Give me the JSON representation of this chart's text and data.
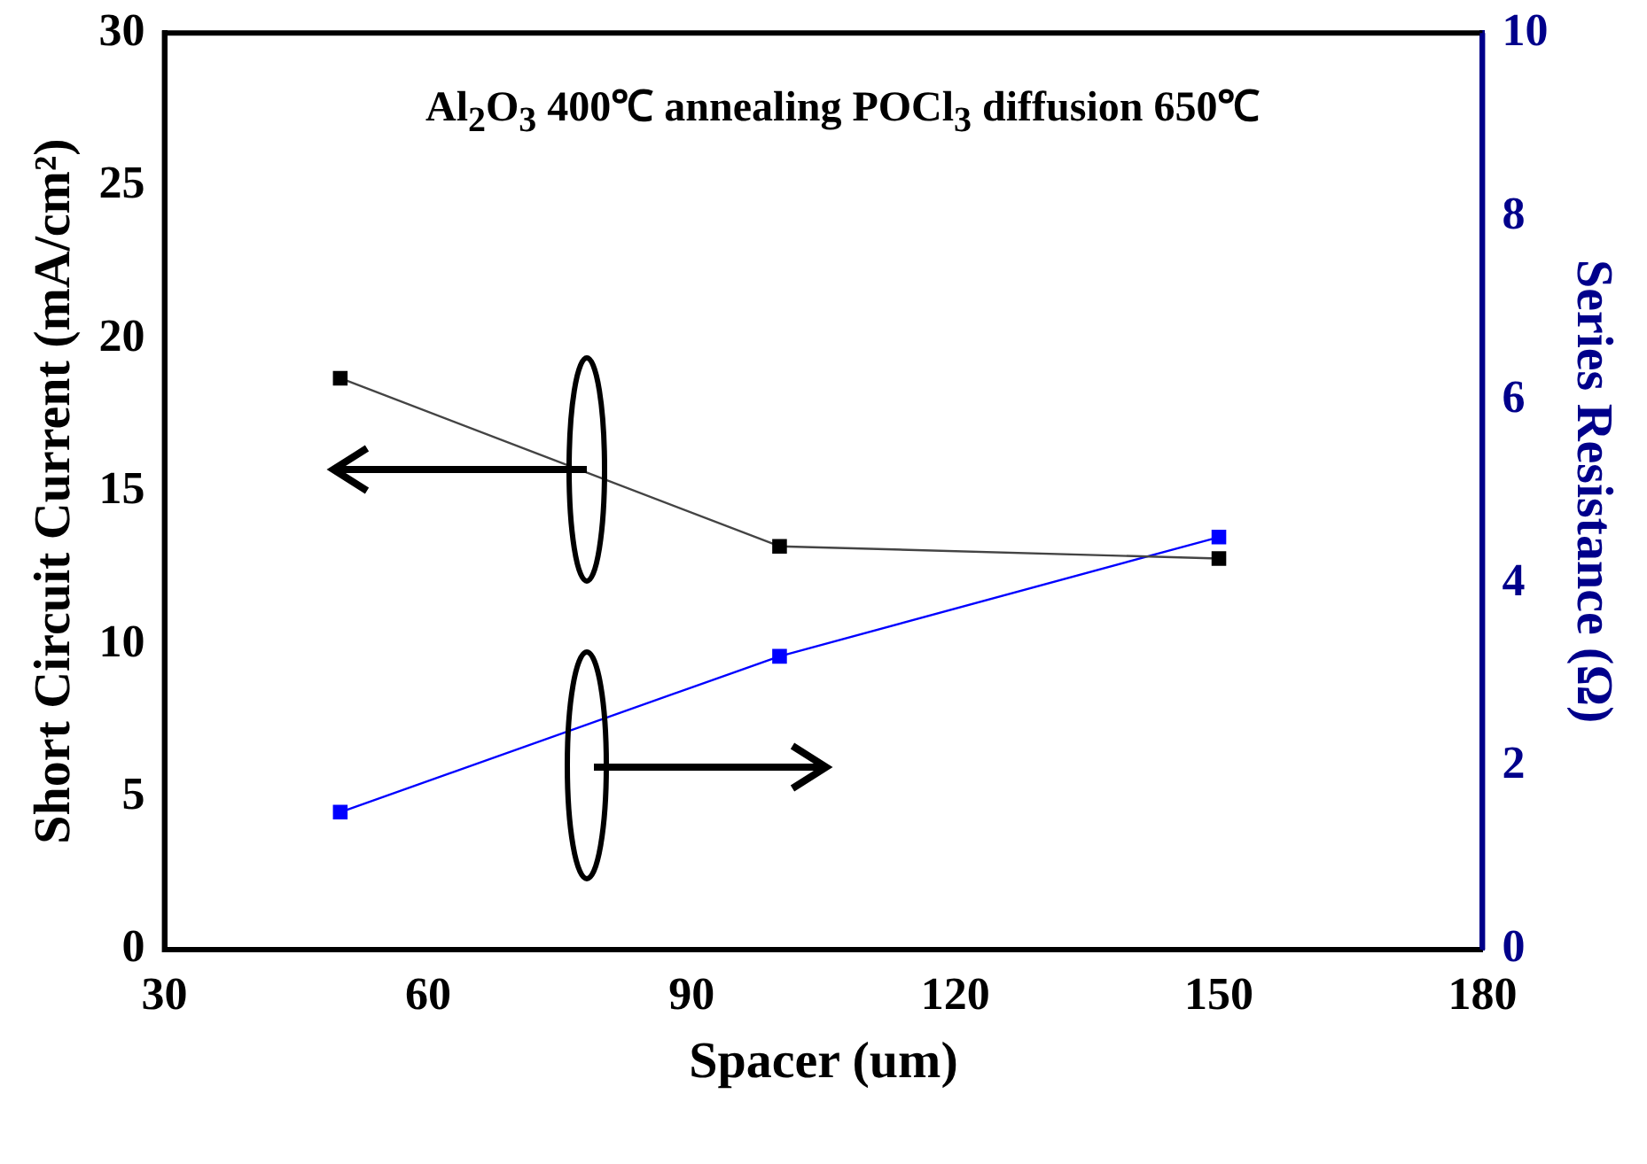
{
  "chart_data": {
    "type": "line",
    "xlabel": "Spacer (um)",
    "ylabel": "Short Circuit Current (mA/cm²)",
    "y2label": "Series Resistance (Ω)",
    "annotations": [
      "Al$_{2}$O$_{3}$ 400℃ annealing POCl$_{3}$ diffusion 650℃"
    ],
    "x": [
      50,
      100,
      150
    ],
    "series": [
      {
        "color": "#000000",
        "values": [
          18.7,
          13.2,
          12.8
        ]
      },
      {
        "color": "#0000ff",
        "values": [
          1.5,
          3.2,
          4.5
        ],
        "axis": "y2"
      }
    ],
    "xlim": [
      30,
      180
    ],
    "xticks": [
      30,
      60,
      90,
      120,
      150,
      180
    ],
    "ylim": [
      0,
      30
    ],
    "yticks": [
      0,
      5,
      10,
      15,
      20,
      25,
      30
    ],
    "y2lim": [
      0,
      10
    ],
    "y2ticks": [
      0,
      2,
      4,
      6,
      8,
      10
    ],
    "grid": false,
    "legend": false,
    "marker": "square",
    "line_style": "solid"
  }
}
